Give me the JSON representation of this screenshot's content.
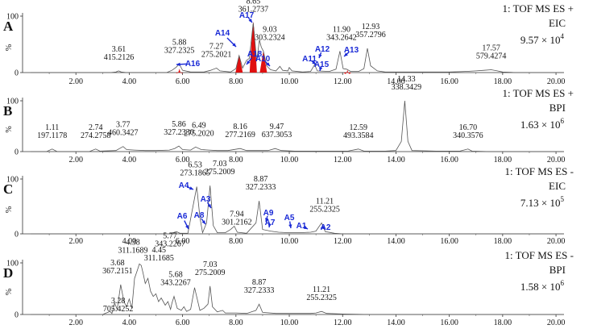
{
  "figure": {
    "x_ticks": [
      "2.00",
      "4.00",
      "6.00",
      "8.00",
      "10.00",
      "12.00",
      "14.00",
      "16.00",
      "18.00",
      "20.00"
    ]
  },
  "chart_data": [
    {
      "type": "line",
      "panel": "A",
      "info": [
        "1: TOF MS ES +",
        "EIC"
      ],
      "intensity": {
        "mantissa": "9.57 × 10",
        "exponent": "4"
      },
      "ylabel": "%",
      "y_ticks": [
        "100",
        "0"
      ],
      "ylim": [
        0,
        100
      ],
      "xlim": [
        0,
        20.3
      ],
      "trace": [
        [
          0.3,
          0
        ],
        [
          3.3,
          0
        ],
        [
          3.5,
          1
        ],
        [
          3.6,
          3
        ],
        [
          3.7,
          1
        ],
        [
          3.9,
          0
        ],
        [
          5.4,
          0
        ],
        [
          5.6,
          4
        ],
        [
          5.75,
          9
        ],
        [
          5.88,
          15
        ],
        [
          6.0,
          4
        ],
        [
          6.3,
          1
        ],
        [
          6.8,
          1
        ],
        [
          7.05,
          4
        ],
        [
          7.27,
          8
        ],
        [
          7.4,
          3
        ],
        [
          7.8,
          1
        ],
        [
          8.0,
          7
        ],
        [
          8.12,
          30
        ],
        [
          8.25,
          8
        ],
        [
          8.4,
          22
        ],
        [
          8.5,
          25
        ],
        [
          8.65,
          88
        ],
        [
          8.78,
          20
        ],
        [
          8.88,
          58
        ],
        [
          8.95,
          45
        ],
        [
          9.03,
          38
        ],
        [
          9.15,
          12
        ],
        [
          9.3,
          5
        ],
        [
          9.5,
          3
        ],
        [
          9.65,
          11
        ],
        [
          9.75,
          4
        ],
        [
          9.95,
          3
        ],
        [
          10.0,
          9
        ],
        [
          10.1,
          3
        ],
        [
          10.5,
          1
        ],
        [
          10.8,
          2
        ],
        [
          10.95,
          14
        ],
        [
          11.05,
          3
        ],
        [
          11.5,
          2
        ],
        [
          11.75,
          6
        ],
        [
          11.9,
          38
        ],
        [
          12.02,
          7
        ],
        [
          12.15,
          6
        ],
        [
          12.3,
          2
        ],
        [
          12.6,
          2
        ],
        [
          12.8,
          7
        ],
        [
          12.93,
          43
        ],
        [
          13.05,
          12
        ],
        [
          13.3,
          3
        ],
        [
          13.6,
          1
        ],
        [
          15.0,
          1
        ],
        [
          16.0,
          1
        ],
        [
          16.6,
          2
        ],
        [
          17.0,
          3
        ],
        [
          17.3,
          4
        ],
        [
          17.57,
          5
        ],
        [
          17.8,
          3
        ],
        [
          18.0,
          1
        ],
        [
          18.5,
          0
        ],
        [
          20.3,
          0
        ]
      ],
      "filled_peaks": [
        [
          8.12,
          32
        ],
        [
          8.65,
          90
        ],
        [
          9.03,
          38
        ],
        [
          5.88,
          7
        ],
        [
          12.18,
          5
        ]
      ],
      "peak_labels": [
        {
          "rt": "3.61",
          "mz": "415.2126",
          "x": 3.61,
          "y": 3
        },
        {
          "rt": "5.88",
          "mz": "327.2325",
          "x": 5.88,
          "y": 15
        },
        {
          "rt": "7.27",
          "mz": "275.2021",
          "x": 7.27,
          "y": 8
        },
        {
          "rt": "8.65",
          "mz": "361.2737",
          "x": 8.65,
          "y": 88
        },
        {
          "rt": "9.03",
          "mz": "303.2324",
          "x": 9.03,
          "y": 38
        },
        {
          "rt": "11.90",
          "mz": "343.2642",
          "x": 11.9,
          "y": 38
        },
        {
          "rt": "12.93",
          "mz": "357.2796",
          "x": 12.93,
          "y": 43
        },
        {
          "rt": "17.57",
          "mz": "579.4274",
          "x": 17.57,
          "y": 5
        }
      ],
      "compounds": [
        "A14",
        "A17",
        "A16",
        "A18",
        "A10",
        "A11",
        "A12",
        "A15",
        "A13"
      ]
    },
    {
      "type": "line",
      "panel": "B",
      "info": [
        "1: TOF MS ES +",
        "BPI"
      ],
      "intensity": {
        "mantissa": "1.63 × 10",
        "exponent": "6"
      },
      "ylabel": "%",
      "y_ticks": [
        "100",
        "0"
      ],
      "ylim": [
        0,
        100
      ],
      "xlim": [
        0,
        20.3
      ],
      "trace": [
        [
          0.3,
          0
        ],
        [
          0.9,
          0
        ],
        [
          1.11,
          5
        ],
        [
          1.3,
          0
        ],
        [
          2.5,
          0
        ],
        [
          2.74,
          5
        ],
        [
          2.9,
          1
        ],
        [
          3.5,
          2
        ],
        [
          3.77,
          10
        ],
        [
          3.9,
          4
        ],
        [
          4.2,
          3
        ],
        [
          4.6,
          2
        ],
        [
          5.0,
          2
        ],
        [
          5.5,
          3
        ],
        [
          5.7,
          6
        ],
        [
          5.86,
          11
        ],
        [
          6.0,
          4
        ],
        [
          6.3,
          3
        ],
        [
          6.49,
          9
        ],
        [
          6.7,
          4
        ],
        [
          7.0,
          3
        ],
        [
          7.3,
          2
        ],
        [
          7.7,
          2
        ],
        [
          8.16,
          6
        ],
        [
          8.4,
          2
        ],
        [
          8.8,
          2
        ],
        [
          9.2,
          2
        ],
        [
          9.47,
          6
        ],
        [
          9.7,
          2
        ],
        [
          10.2,
          1
        ],
        [
          11.0,
          1
        ],
        [
          12.2,
          1
        ],
        [
          12.59,
          5
        ],
        [
          12.8,
          1
        ],
        [
          13.6,
          1
        ],
        [
          14.0,
          2
        ],
        [
          14.2,
          20
        ],
        [
          14.33,
          100
        ],
        [
          14.45,
          20
        ],
        [
          14.6,
          2
        ],
        [
          15.5,
          1
        ],
        [
          16.4,
          1
        ],
        [
          16.7,
          5
        ],
        [
          16.85,
          1
        ],
        [
          17.5,
          0
        ],
        [
          20.3,
          0
        ]
      ],
      "peak_labels": [
        {
          "rt": "1.11",
          "mz": "197.1178",
          "x": 1.11,
          "y": 5
        },
        {
          "rt": "2.74",
          "mz": "274.2758",
          "x": 2.74,
          "y": 5
        },
        {
          "rt": "3.77",
          "mz": "460.3427",
          "x": 3.77,
          "y": 10
        },
        {
          "rt": "5.86",
          "mz": "327.2330",
          "x": 5.86,
          "y": 11
        },
        {
          "rt": "6.49",
          "mz": "275.2020",
          "x": 6.49,
          "y": 9
        },
        {
          "rt": "8.16",
          "mz": "277.2169",
          "x": 8.16,
          "y": 6
        },
        {
          "rt": "9.47",
          "mz": "637.3053",
          "x": 9.47,
          "y": 6
        },
        {
          "rt": "12.59",
          "mz": "493.3584",
          "x": 12.59,
          "y": 5
        },
        {
          "rt": "14.33",
          "mz": "338.3429",
          "x": 14.33,
          "y": 100
        },
        {
          "rt": "16.70",
          "mz": "340.3576",
          "x": 16.7,
          "y": 5
        }
      ]
    },
    {
      "type": "line",
      "panel": "C",
      "info": [
        "1: TOF MS ES -",
        "EIC"
      ],
      "intensity": {
        "mantissa": "7.13 × 10",
        "exponent": "5"
      },
      "ylabel": "%",
      "y_ticks": [
        "100",
        "0"
      ],
      "ylim": [
        0,
        100
      ],
      "xlim": [
        0,
        20.3
      ],
      "trace": [
        [
          0.3,
          0
        ],
        [
          5.5,
          0
        ],
        [
          5.77,
          4
        ],
        [
          5.9,
          1
        ],
        [
          6.2,
          1
        ],
        [
          6.35,
          40
        ],
        [
          6.53,
          86
        ],
        [
          6.65,
          30
        ],
        [
          6.75,
          2
        ],
        [
          6.9,
          20
        ],
        [
          7.03,
          88
        ],
        [
          7.15,
          15
        ],
        [
          7.3,
          2
        ],
        [
          7.6,
          2
        ],
        [
          7.8,
          8
        ],
        [
          7.94,
          14
        ],
        [
          8.05,
          3
        ],
        [
          8.4,
          1
        ],
        [
          8.75,
          20
        ],
        [
          8.87,
          60
        ],
        [
          9.0,
          8
        ],
        [
          9.3,
          5
        ],
        [
          9.6,
          3
        ],
        [
          10.0,
          2
        ],
        [
          10.4,
          2
        ],
        [
          10.8,
          3
        ],
        [
          11.0,
          5
        ],
        [
          11.21,
          20
        ],
        [
          11.35,
          4
        ],
        [
          11.7,
          1
        ],
        [
          12.0,
          0
        ],
        [
          20.3,
          0
        ]
      ],
      "peak_labels": [
        {
          "rt": "6.53",
          "mz": "273.1865",
          "x": 6.53,
          "y": 86
        },
        {
          "rt": "7.03",
          "mz": "275.2009",
          "x": 7.03,
          "y": 88
        },
        {
          "rt": "5.77",
          "mz": "343.2267",
          "x": 5.77,
          "y": 4
        },
        {
          "rt": "7.94",
          "mz": "301.2162",
          "x": 7.94,
          "y": 14
        },
        {
          "rt": "8.87",
          "mz": "327.2333",
          "x": 8.87,
          "y": 60
        },
        {
          "rt": "11.21",
          "mz": "255.2325",
          "x": 11.21,
          "y": 20
        }
      ],
      "compounds": [
        "A4",
        "A3",
        "A6",
        "A8",
        "A9",
        "A7",
        "A5",
        "A1",
        "A2"
      ]
    },
    {
      "type": "line",
      "panel": "D",
      "info": [
        "1: TOF MS ES -",
        "BPI"
      ],
      "intensity": {
        "mantissa": "1.58 × 10",
        "exponent": "6"
      },
      "ylabel": "%",
      "y_ticks": [
        "100",
        "0"
      ],
      "ylim": [
        0,
        100
      ],
      "xlim": [
        0,
        20.3
      ],
      "trace": [
        [
          0.3,
          0
        ],
        [
          3.0,
          0
        ],
        [
          3.28,
          6
        ],
        [
          3.35,
          2
        ],
        [
          3.45,
          22
        ],
        [
          3.55,
          10
        ],
        [
          3.68,
          58
        ],
        [
          3.8,
          25
        ],
        [
          3.9,
          15
        ],
        [
          4.0,
          30
        ],
        [
          4.1,
          12
        ],
        [
          4.2,
          70
        ],
        [
          4.3,
          85
        ],
        [
          4.38,
          98
        ],
        [
          4.45,
          95
        ],
        [
          4.52,
          80
        ],
        [
          4.6,
          60
        ],
        [
          4.7,
          70
        ],
        [
          4.8,
          45
        ],
        [
          4.9,
          35
        ],
        [
          5.0,
          40
        ],
        [
          5.1,
          25
        ],
        [
          5.2,
          32
        ],
        [
          5.35,
          18
        ],
        [
          5.45,
          25
        ],
        [
          5.55,
          10
        ],
        [
          5.6,
          22
        ],
        [
          5.68,
          35
        ],
        [
          5.8,
          12
        ],
        [
          5.95,
          8
        ],
        [
          6.05,
          15
        ],
        [
          6.15,
          6
        ],
        [
          6.3,
          10
        ],
        [
          6.45,
          52
        ],
        [
          6.55,
          30
        ],
        [
          6.65,
          8
        ],
        [
          6.8,
          12
        ],
        [
          6.95,
          20
        ],
        [
          7.03,
          55
        ],
        [
          7.12,
          15
        ],
        [
          7.3,
          5
        ],
        [
          7.5,
          8
        ],
        [
          7.6,
          3
        ],
        [
          8.0,
          3
        ],
        [
          8.4,
          2
        ],
        [
          8.75,
          8
        ],
        [
          8.87,
          20
        ],
        [
          9.0,
          4
        ],
        [
          9.5,
          2
        ],
        [
          10.0,
          2
        ],
        [
          10.8,
          2
        ],
        [
          11.0,
          3
        ],
        [
          11.21,
          6
        ],
        [
          11.4,
          2
        ],
        [
          12.0,
          1
        ],
        [
          13.0,
          0
        ],
        [
          20.3,
          0
        ]
      ],
      "peak_labels": [
        {
          "rt": "3.28",
          "mz": "705.4252",
          "x": 3.28,
          "y": 6
        },
        {
          "rt": "3.68",
          "mz": "367.2151",
          "x": 3.68,
          "y": 58
        },
        {
          "rt": "4.38",
          "mz": "311.1689",
          "x": 4.38,
          "y": 98
        },
        {
          "rt": "4.45",
          "mz": "311.1685",
          "x": 4.45,
          "y": 95
        },
        {
          "rt": "5.68",
          "mz": "343.2267",
          "x": 5.68,
          "y": 35
        },
        {
          "rt": "7.03",
          "mz": "275.2009",
          "x": 7.03,
          "y": 55
        },
        {
          "rt": "8.87",
          "mz": "327.2333",
          "x": 8.87,
          "y": 20
        },
        {
          "rt": "11.21",
          "mz": "255.2325",
          "x": 11.21,
          "y": 6
        }
      ]
    }
  ]
}
